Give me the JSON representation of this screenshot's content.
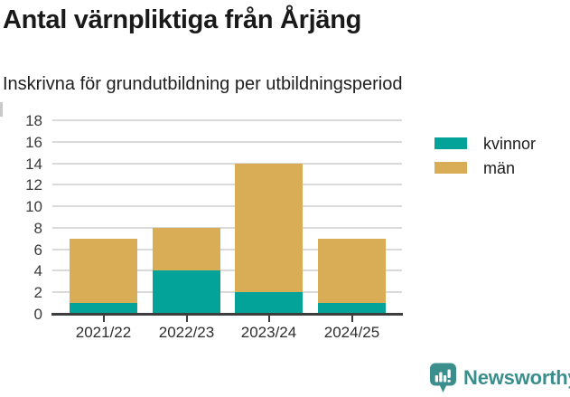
{
  "chart_data": {
    "type": "bar",
    "stacked": true,
    "title": "Antal värnpliktiga från Årjäng",
    "subtitle": "Inskrivna för grundutbildning per utbildningsperiod",
    "categories": [
      "2021/22",
      "2022/23",
      "2023/24",
      "2024/25"
    ],
    "series": [
      {
        "name": "kvinnor",
        "color": "#03a399",
        "values": [
          1,
          4,
          2,
          1
        ]
      },
      {
        "name": "män",
        "color": "#d9ad55",
        "values": [
          6,
          4,
          12,
          6
        ]
      }
    ],
    "stack_totals": [
      7,
      8,
      14,
      7
    ],
    "ylim": [
      0,
      18
    ],
    "yticks": [
      0,
      2,
      4,
      6,
      8,
      10,
      12,
      14,
      16,
      18
    ],
    "xlabel": "",
    "ylabel": "",
    "grid": "horizontal",
    "legend_position": "right-top"
  },
  "footer": {
    "brand": "Newsworthy"
  },
  "colors": {
    "kvinnor": "#03a399",
    "man": "#d9ad55",
    "brand": "#3a8e8b",
    "axis": "#3d3d3d",
    "gridline": "#dadada",
    "title_text": "#1a1a1a"
  }
}
